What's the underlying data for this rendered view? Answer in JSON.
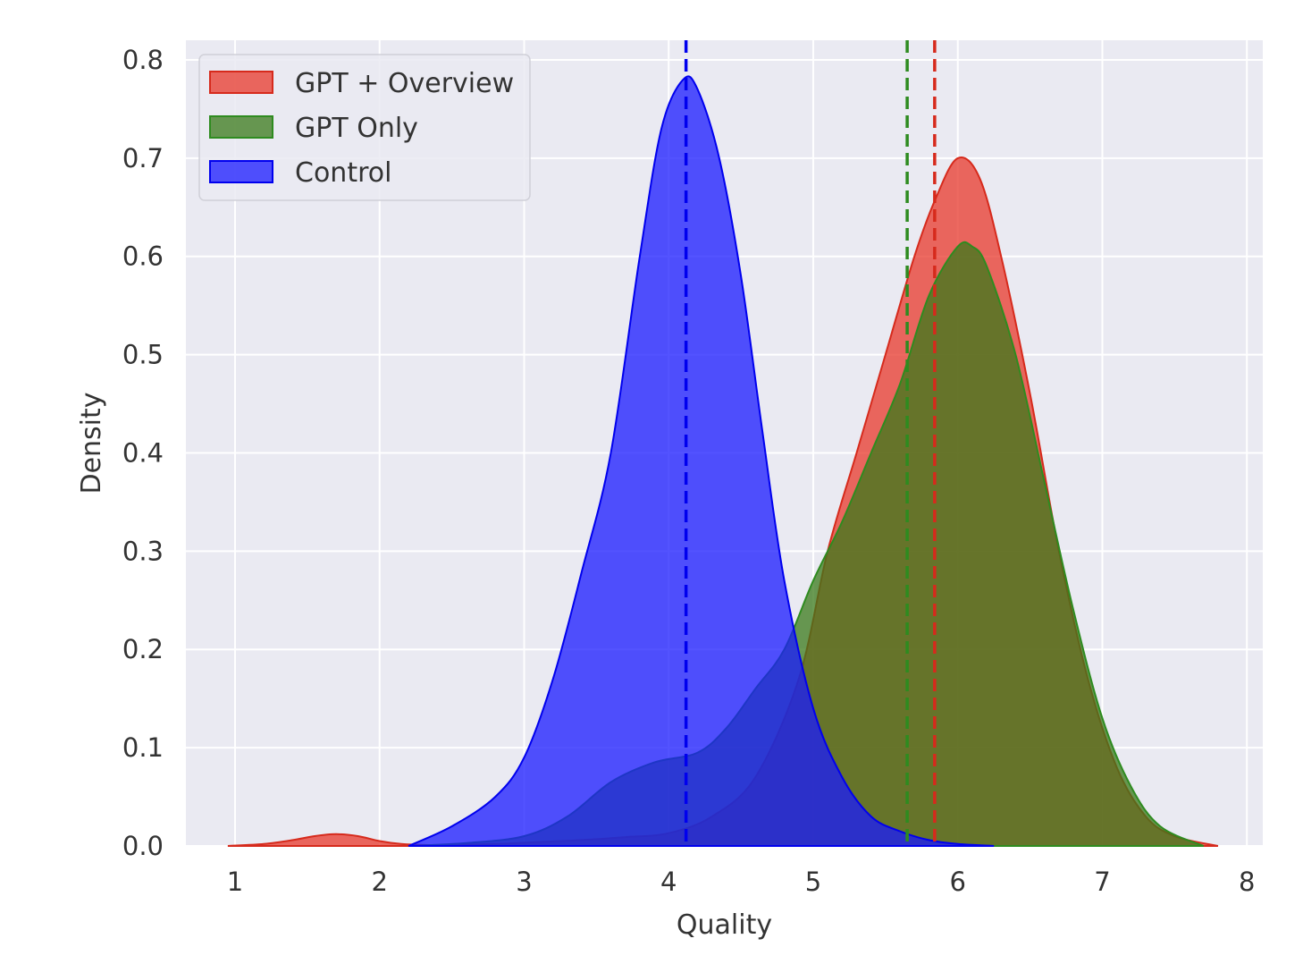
{
  "chart_data": {
    "type": "area",
    "title": "",
    "xlabel": "Quality",
    "ylabel": "Density",
    "xlim": [
      0.66,
      8.11
    ],
    "ylim": [
      0.0,
      0.82
    ],
    "xticks": [
      1,
      2,
      3,
      4,
      5,
      6,
      7,
      8
    ],
    "xtick_labels": [
      "1",
      "2",
      "3",
      "4",
      "5",
      "6",
      "7",
      "8"
    ],
    "yticks": [
      0.0,
      0.1,
      0.2,
      0.3,
      0.4,
      0.5,
      0.6,
      0.7,
      0.8
    ],
    "ytick_labels": [
      "0.0",
      "0.1",
      "0.2",
      "0.3",
      "0.4",
      "0.5",
      "0.6",
      "0.7",
      "0.8"
    ],
    "grid": true,
    "background": "#eaeaf2",
    "legend_position": "top-left",
    "series": [
      {
        "name": "GPT + Overview",
        "fill": "#e8382b",
        "edge": "#d62a1c",
        "mean": 5.84,
        "x": [
          0.95,
          1.2,
          1.4,
          1.55,
          1.7,
          1.85,
          2.0,
          2.15,
          2.3,
          2.5,
          2.8,
          3.1,
          3.4,
          3.7,
          4.0,
          4.3,
          4.6,
          4.9,
          5.1,
          5.3,
          5.5,
          5.7,
          5.85,
          6.0,
          6.15,
          6.3,
          6.5,
          6.7,
          6.9,
          7.1,
          7.3,
          7.5,
          7.8
        ],
        "y": [
          0.0,
          0.002,
          0.006,
          0.01,
          0.012,
          0.01,
          0.005,
          0.002,
          0.001,
          0.001,
          0.002,
          0.004,
          0.006,
          0.009,
          0.013,
          0.03,
          0.07,
          0.17,
          0.3,
          0.4,
          0.5,
          0.6,
          0.66,
          0.7,
          0.68,
          0.6,
          0.46,
          0.3,
          0.17,
          0.08,
          0.03,
          0.01,
          0.0
        ]
      },
      {
        "name": "GPT Only",
        "fill": "#3a7a1a",
        "edge": "#2e8b1f",
        "mean": 5.65,
        "x": [
          2.2,
          2.6,
          3.0,
          3.3,
          3.6,
          3.9,
          4.2,
          4.4,
          4.6,
          4.8,
          5.0,
          5.2,
          5.4,
          5.6,
          5.8,
          6.0,
          6.1,
          6.2,
          6.4,
          6.6,
          6.8,
          7.0,
          7.2,
          7.4,
          7.7
        ],
        "y": [
          0.0,
          0.003,
          0.01,
          0.03,
          0.065,
          0.085,
          0.095,
          0.12,
          0.16,
          0.2,
          0.27,
          0.33,
          0.4,
          0.47,
          0.56,
          0.61,
          0.61,
          0.59,
          0.5,
          0.37,
          0.24,
          0.13,
          0.06,
          0.02,
          0.0
        ]
      },
      {
        "name": "Control",
        "fill": "#1a1aff",
        "edge": "#0000ee",
        "mean": 4.12,
        "x": [
          2.2,
          2.5,
          2.8,
          3.0,
          3.2,
          3.4,
          3.6,
          3.8,
          3.95,
          4.1,
          4.2,
          4.35,
          4.5,
          4.65,
          4.8,
          5.0,
          5.2,
          5.4,
          5.6,
          5.8,
          6.0,
          6.25
        ],
        "y": [
          0.0,
          0.02,
          0.05,
          0.09,
          0.17,
          0.28,
          0.4,
          0.6,
          0.73,
          0.78,
          0.77,
          0.7,
          0.58,
          0.42,
          0.27,
          0.14,
          0.07,
          0.03,
          0.015,
          0.006,
          0.002,
          0.0
        ]
      }
    ]
  }
}
